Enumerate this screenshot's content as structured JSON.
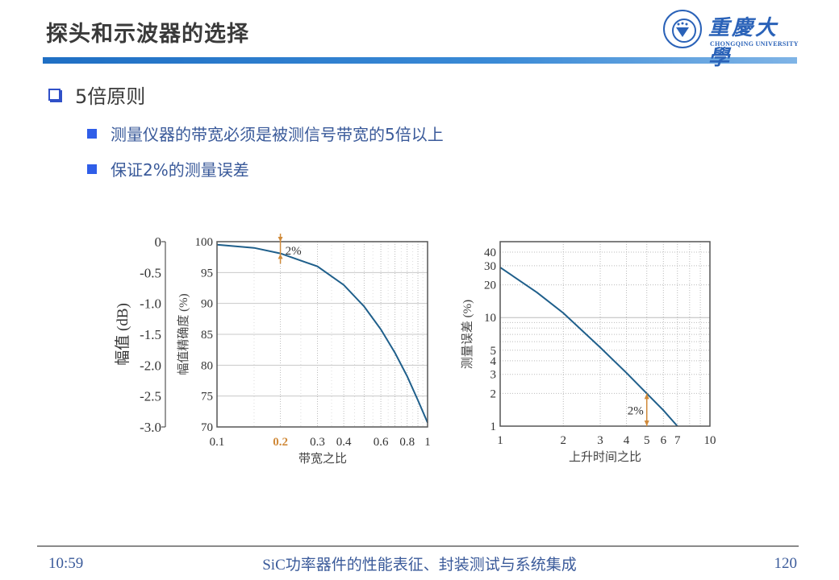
{
  "slide": {
    "title": "探头和示波器的选择",
    "heading": "5倍原则",
    "bullets": [
      "测量仪器的带宽必须是被测信号带宽的5倍以上",
      "保证2%的测量误差"
    ]
  },
  "logo": {
    "name_cn": "重慶大學",
    "name_en": "CHONGQING UNIVERSITY",
    "color": "#2a62b8"
  },
  "footer": {
    "time": "10:59",
    "course_title": "SiC功率器件的性能表征、封装测试与系统集成",
    "page_number": "120"
  },
  "colors": {
    "title_bar": "#1f6fc4",
    "bullet_square": "#2f5ee8",
    "curve": "#1f5f8b",
    "annotation": "#d08a3a"
  },
  "chart_data": [
    {
      "type": "line",
      "title": "",
      "xlabel": "带宽之比",
      "ylabel": "幅值精确度 (%)",
      "secondary_ylabel": "幅值 (dB)",
      "x_scale": "log",
      "xlim": [
        0.1,
        1
      ],
      "ylim": [
        70,
        100
      ],
      "x_ticks": [
        "0.1",
        "0.2",
        "0.3",
        "0.4",
        "0.6",
        "0.8",
        "1"
      ],
      "x_tick_highlight": "0.2",
      "y_ticks": [
        "100",
        "95",
        "90",
        "85",
        "80",
        "75",
        "70"
      ],
      "secondary_y_ticks": [
        "0",
        "-0.5",
        "-1.0",
        "-1.5",
        "-2.0",
        "-2.5",
        "-3.0"
      ],
      "grid": true,
      "annotation": {
        "text": "2%",
        "x": 0.2,
        "y_from": 100,
        "y_to": 98
      },
      "x": [
        0.1,
        0.15,
        0.2,
        0.3,
        0.4,
        0.5,
        0.6,
        0.7,
        0.8,
        0.9,
        1.0
      ],
      "values": [
        99.5,
        99.0,
        98.1,
        96.0,
        93.0,
        89.5,
        85.8,
        82.0,
        78.2,
        74.3,
        70.7
      ]
    },
    {
      "type": "line",
      "title": "",
      "xlabel": "上升时间之比",
      "ylabel": "测量误差 (%)",
      "x_scale": "log",
      "y_scale": "log",
      "xlim": [
        1,
        10
      ],
      "ylim": [
        1,
        50
      ],
      "x_ticks": [
        "1",
        "2",
        "3",
        "4",
        "5",
        "6",
        "7",
        "10"
      ],
      "y_ticks": [
        "40",
        "30",
        "20",
        "10",
        "5",
        "4",
        "3",
        "2",
        "1"
      ],
      "grid": true,
      "annotation": {
        "text": "2%",
        "x": 5,
        "y_from": 1,
        "y_to": 2
      },
      "x": [
        1,
        1.5,
        2,
        3,
        4,
        5,
        6,
        7
      ],
      "values": [
        29,
        17,
        11,
        5.3,
        3.1,
        2.0,
        1.4,
        1.0
      ]
    }
  ]
}
